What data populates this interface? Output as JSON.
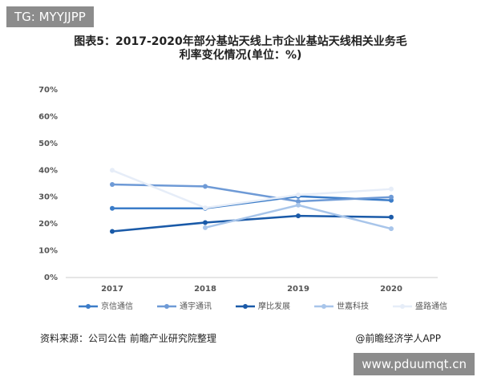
{
  "watermark": "TG: MYYJJPP",
  "website": "www.pduumqt.cn",
  "source": "资料来源：公司公告 前瞻产业研究院整理",
  "publisher": "@前瞻经济学人APP",
  "chart_data": {
    "type": "line",
    "title": "图表5：2017-2020年部分基站天线上市企业基站天线相关业务毛利率变化情况(单位：%)",
    "categories": [
      "2017",
      "2018",
      "2019",
      "2020"
    ],
    "series": [
      {
        "name": "京信通信",
        "color": "#3b7cc8",
        "values": [
          25.8,
          25.8,
          30.3,
          28.8
        ]
      },
      {
        "name": "通宇通讯",
        "color": "#6e9ad6",
        "values": [
          34.7,
          34,
          28.4,
          30
        ]
      },
      {
        "name": "摩比发展",
        "color": "#1a5aa8",
        "values": [
          17.2,
          20.5,
          23,
          22.5
        ]
      },
      {
        "name": "世嘉科技",
        "color": "#a8c5ea",
        "values": [
          null,
          18.6,
          27,
          18.2
        ]
      },
      {
        "name": "盛路通信",
        "color": "#e6edf8",
        "values": [
          40,
          26,
          30.8,
          33
        ]
      }
    ],
    "ylim": [
      0,
      70
    ],
    "yticks": [
      {
        "value": 0,
        "label": "0%"
      },
      {
        "value": 10,
        "label": "10%"
      },
      {
        "value": 20,
        "label": "20%"
      },
      {
        "value": 30,
        "label": "30%"
      },
      {
        "value": 40,
        "label": "40%"
      },
      {
        "value": 50,
        "label": "50%"
      },
      {
        "value": 60,
        "label": "60%"
      },
      {
        "value": 70,
        "label": "70%"
      }
    ],
    "legend": "bottom"
  }
}
